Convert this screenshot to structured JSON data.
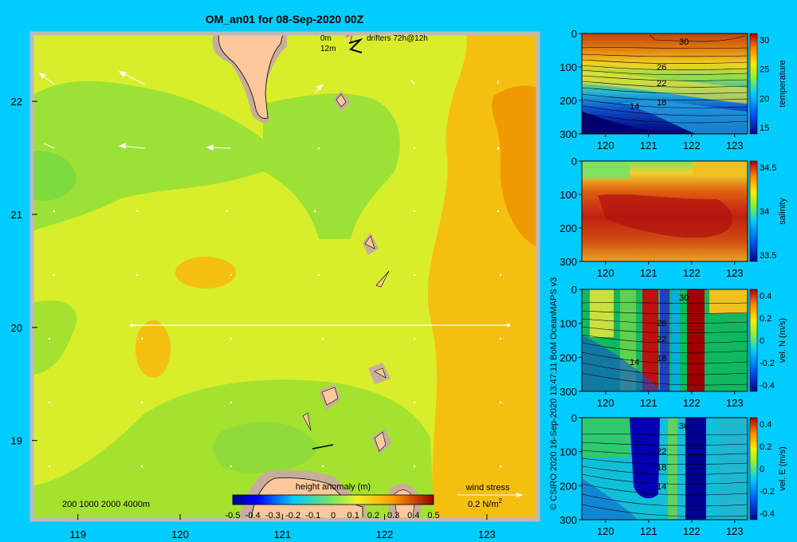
{
  "title": "OM_an01 for 08-Sep-2020 00Z",
  "legend_top": {
    "depth_0": "0m",
    "depth_12": "12m",
    "drifters": "drifters 72h@12h"
  },
  "bathy_legend": "200  1000  2000  4000m",
  "colorbar": {
    "title": "height anomaly (m)",
    "ticks": [
      "-0.5",
      "-0.4",
      "-0.3",
      "-0.2",
      "-0.1",
      "0",
      "0.1",
      "0.2",
      "0.3",
      "0.4",
      "0.5"
    ]
  },
  "wind": {
    "title": "wind stress",
    "scale": "0.2 N/m",
    "superscript": "2"
  },
  "credit": "© CSIRO 2020  16-Sep-2020 13:47:11 BoM OceanMAPS v3",
  "colors": {
    "background": "#00ccff",
    "land": "#fdc89b",
    "shelf": "#c8ad9b",
    "frame": "#bbbbbb",
    "drifter": "#ff33ff"
  },
  "chart_data": [
    {
      "type": "heatmap",
      "name": "map",
      "title": "OM_an01 for 08-Sep-2020 00Z",
      "x_ticks": [
        "119",
        "120",
        "121",
        "122",
        "123"
      ],
      "y_ticks": [
        "22",
        "21",
        "20",
        "19"
      ],
      "xlim": [
        118.55,
        123.5
      ],
      "ylim": [
        18.3,
        22.6
      ],
      "section_line": {
        "lat": 20.0,
        "lon": [
          119.5,
          123.05
        ]
      },
      "colorbar_range": [
        -0.5,
        0.5
      ]
    },
    {
      "type": "heatmap",
      "name": "temperature",
      "cb_label": "temperature",
      "cb_ticks": [
        "30",
        "25",
        "20",
        "15"
      ],
      "contour_labels": [
        "30",
        "26",
        "22",
        "18",
        "14"
      ],
      "x_ticks": [
        "120",
        "121",
        "122",
        "123"
      ],
      "y_ticks": [
        "0",
        "100",
        "200",
        "300"
      ],
      "ylim": [
        0,
        300
      ]
    },
    {
      "type": "heatmap",
      "name": "salinity",
      "cb_label": "salinity",
      "cb_ticks": [
        "34.5",
        "34",
        "33.5"
      ],
      "contour_labels": [],
      "x_ticks": [
        "120",
        "121",
        "122",
        "123"
      ],
      "y_ticks": [
        "0",
        "100",
        "200",
        "300"
      ],
      "ylim": [
        0,
        300
      ]
    },
    {
      "type": "heatmap",
      "name": "vel_n",
      "cb_label": "vel. N (m/s)",
      "cb_ticks": [
        "0.4",
        "0.2",
        "0",
        "-0.2",
        "-0.4"
      ],
      "contour_labels": [
        "30",
        "26",
        "22",
        "18",
        "14"
      ],
      "x_ticks": [
        "120",
        "121",
        "122",
        "123"
      ],
      "y_ticks": [
        "0",
        "100",
        "200",
        "300"
      ],
      "ylim": [
        0,
        300
      ]
    },
    {
      "type": "heatmap",
      "name": "vel_e",
      "cb_label": "vel. E (m/s)",
      "cb_ticks": [
        "0.4",
        "0.2",
        "0",
        "-0.2",
        "-0.4"
      ],
      "contour_labels": [
        "30",
        "22",
        "18",
        "14"
      ],
      "x_ticks": [
        "120",
        "121",
        "122",
        "123"
      ],
      "y_ticks": [
        "0",
        "100",
        "200",
        "300"
      ],
      "ylim": [
        0,
        300
      ]
    }
  ]
}
